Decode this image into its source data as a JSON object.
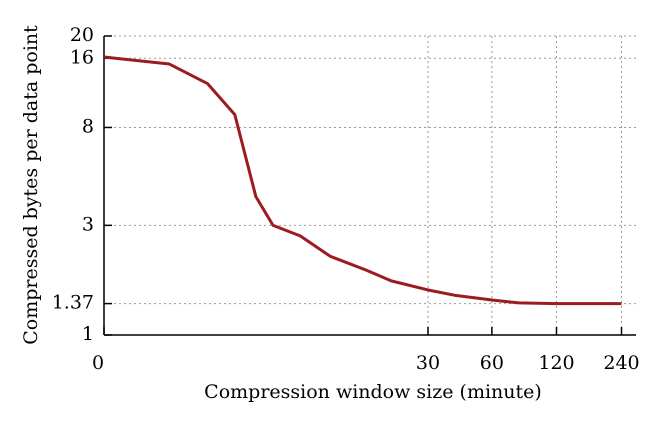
{
  "chart_data": {
    "type": "line",
    "xlabel": "Compression window size (minute)",
    "ylabel": "Compressed bytes per data point",
    "xscale": "log1p",
    "yscale": "log",
    "xlim": [
      0,
      280
    ],
    "ylim": [
      1,
      20
    ],
    "xticks": [
      0,
      30,
      60,
      120,
      240
    ],
    "yticks": [
      1,
      1.37,
      3,
      8,
      16,
      20
    ],
    "grid": true,
    "x": [
      0,
      1,
      2,
      3,
      4,
      5,
      7,
      10,
      15,
      20,
      30,
      40,
      60,
      80,
      120,
      240
    ],
    "series": [
      {
        "color": "#9b1b20",
        "values": [
          16.2,
          15.1,
          12.4,
          9.1,
          4.0,
          3.0,
          2.7,
          2.2,
          1.92,
          1.72,
          1.57,
          1.49,
          1.42,
          1.38,
          1.37,
          1.37
        ]
      }
    ]
  }
}
